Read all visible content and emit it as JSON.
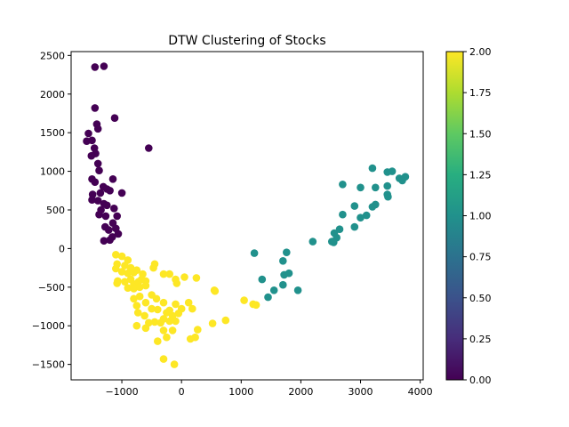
{
  "chart_data": {
    "type": "scatter",
    "title": "DTW Clustering of Stocks",
    "xlabel": "",
    "ylabel": "",
    "xlim": [
      -1850,
      4050
    ],
    "ylim": [
      -1700,
      2550
    ],
    "x_ticks": [
      -1000,
      0,
      1000,
      2000,
      3000,
      4000
    ],
    "x_tick_labels": [
      "−1000",
      "0",
      "1000",
      "2000",
      "3000",
      "4000"
    ],
    "y_ticks": [
      -1500,
      -1000,
      -500,
      0,
      500,
      1000,
      1500,
      2000,
      2500
    ],
    "y_tick_labels": [
      "−1500",
      "−1000",
      "−500",
      "0",
      "500",
      "1000",
      "1500",
      "2000",
      "2500"
    ],
    "grid": false,
    "colorbar": {
      "colormap": "viridis",
      "range": [
        0.0,
        2.0
      ],
      "ticks": [
        0.0,
        0.25,
        0.5,
        0.75,
        1.0,
        1.25,
        1.5,
        1.75,
        2.0
      ],
      "tick_labels": [
        "0.00",
        "0.25",
        "0.50",
        "0.75",
        "1.00",
        "1.25",
        "1.50",
        "1.75",
        "2.00"
      ]
    },
    "series": [
      {
        "cluster": 0,
        "color": "#440154",
        "points": [
          [
            -1450,
            2350
          ],
          [
            -1300,
            2360
          ],
          [
            -1450,
            1820
          ],
          [
            -1120,
            1690
          ],
          [
            -1420,
            1610
          ],
          [
            -1400,
            1550
          ],
          [
            -1560,
            1490
          ],
          [
            -1590,
            1390
          ],
          [
            -1500,
            1400
          ],
          [
            -1460,
            1300
          ],
          [
            -1440,
            1230
          ],
          [
            -1510,
            1200
          ],
          [
            -1400,
            1100
          ],
          [
            -1380,
            1010
          ],
          [
            -1500,
            900
          ],
          [
            -1150,
            900
          ],
          [
            -1450,
            860
          ],
          [
            -1310,
            800
          ],
          [
            -1250,
            770
          ],
          [
            -1200,
            750
          ],
          [
            -1490,
            700
          ],
          [
            -1360,
            720
          ],
          [
            -1400,
            620
          ],
          [
            -1500,
            630
          ],
          [
            -1300,
            580
          ],
          [
            -1250,
            560
          ],
          [
            -1350,
            500
          ],
          [
            -1380,
            440
          ],
          [
            -1270,
            420
          ],
          [
            -1130,
            520
          ],
          [
            -1080,
            420
          ],
          [
            -1150,
            330
          ],
          [
            -1280,
            280
          ],
          [
            -1220,
            240
          ],
          [
            -1100,
            260
          ],
          [
            -1060,
            190
          ],
          [
            -1160,
            150
          ],
          [
            -1300,
            100
          ],
          [
            -1200,
            110
          ],
          [
            -1000,
            720
          ],
          [
            -550,
            1300
          ]
        ]
      },
      {
        "cluster": 1,
        "color": "#21918c",
        "points": [
          [
            3200,
            1040
          ],
          [
            3450,
            990
          ],
          [
            3530,
            1000
          ],
          [
            3650,
            910
          ],
          [
            3750,
            930
          ],
          [
            3700,
            880
          ],
          [
            2700,
            830
          ],
          [
            3000,
            790
          ],
          [
            3250,
            790
          ],
          [
            3450,
            810
          ],
          [
            3450,
            700
          ],
          [
            3460,
            670
          ],
          [
            2900,
            550
          ],
          [
            3250,
            570
          ],
          [
            3200,
            540
          ],
          [
            3100,
            430
          ],
          [
            2700,
            440
          ],
          [
            3000,
            400
          ],
          [
            2650,
            250
          ],
          [
            2900,
            280
          ],
          [
            2560,
            200
          ],
          [
            2600,
            140
          ],
          [
            2520,
            90
          ],
          [
            2550,
            80
          ],
          [
            2200,
            90
          ],
          [
            1220,
            -60
          ],
          [
            1760,
            -50
          ],
          [
            1700,
            -160
          ],
          [
            1800,
            -320
          ],
          [
            1720,
            -340
          ],
          [
            1350,
            -400
          ],
          [
            1700,
            -470
          ],
          [
            1550,
            -540
          ],
          [
            1950,
            -540
          ],
          [
            1450,
            -630
          ]
        ]
      },
      {
        "cluster": 2,
        "color": "#fde725",
        "points": [
          [
            -1100,
            -80
          ],
          [
            -1000,
            -100
          ],
          [
            -900,
            -150
          ],
          [
            -1080,
            -200
          ],
          [
            -950,
            -220
          ],
          [
            -850,
            -250
          ],
          [
            -1100,
            -260
          ],
          [
            -1000,
            -300
          ],
          [
            -900,
            -320
          ],
          [
            -800,
            -310
          ],
          [
            -750,
            -280
          ],
          [
            -1070,
            -420
          ],
          [
            -1080,
            -450
          ],
          [
            -950,
            -430
          ],
          [
            -850,
            -400
          ],
          [
            -800,
            -460
          ],
          [
            -720,
            -430
          ],
          [
            -670,
            -400
          ],
          [
            -900,
            -510
          ],
          [
            -800,
            -520
          ],
          [
            -700,
            -500
          ],
          [
            -600,
            -480
          ],
          [
            -450,
            -200
          ],
          [
            -470,
            -250
          ],
          [
            -300,
            -330
          ],
          [
            -200,
            -330
          ],
          [
            -100,
            -400
          ],
          [
            -80,
            -450
          ],
          [
            50,
            -370
          ],
          [
            250,
            -380
          ],
          [
            -700,
            -620
          ],
          [
            -500,
            -600
          ],
          [
            -420,
            -650
          ],
          [
            -600,
            -700
          ],
          [
            -800,
            -650
          ],
          [
            -750,
            -740
          ],
          [
            -300,
            -700
          ],
          [
            -100,
            -720
          ],
          [
            -200,
            -800
          ],
          [
            0,
            -780
          ],
          [
            -50,
            -840
          ],
          [
            120,
            -700
          ],
          [
            180,
            -780
          ],
          [
            -500,
            -780
          ],
          [
            -400,
            -790
          ],
          [
            -730,
            -830
          ],
          [
            -620,
            -870
          ],
          [
            -250,
            -830
          ],
          [
            -150,
            -870
          ],
          [
            -300,
            -910
          ],
          [
            -200,
            -940
          ],
          [
            -100,
            -940
          ],
          [
            -450,
            -950
          ],
          [
            -350,
            -960
          ],
          [
            -550,
            -960
          ],
          [
            -750,
            -1000
          ],
          [
            -600,
            -1030
          ],
          [
            -300,
            -1060
          ],
          [
            -150,
            -1060
          ],
          [
            270,
            -1050
          ],
          [
            230,
            -1150
          ],
          [
            150,
            -1170
          ],
          [
            -250,
            -1150
          ],
          [
            -400,
            -1200
          ],
          [
            -300,
            -1430
          ],
          [
            -120,
            -1500
          ],
          [
            520,
            -970
          ],
          [
            740,
            -930
          ],
          [
            1050,
            -670
          ],
          [
            1200,
            -720
          ],
          [
            1250,
            -730
          ],
          [
            550,
            -540
          ],
          [
            560,
            -550
          ],
          [
            -650,
            -330
          ],
          [
            -600,
            -420
          ]
        ]
      }
    ]
  }
}
